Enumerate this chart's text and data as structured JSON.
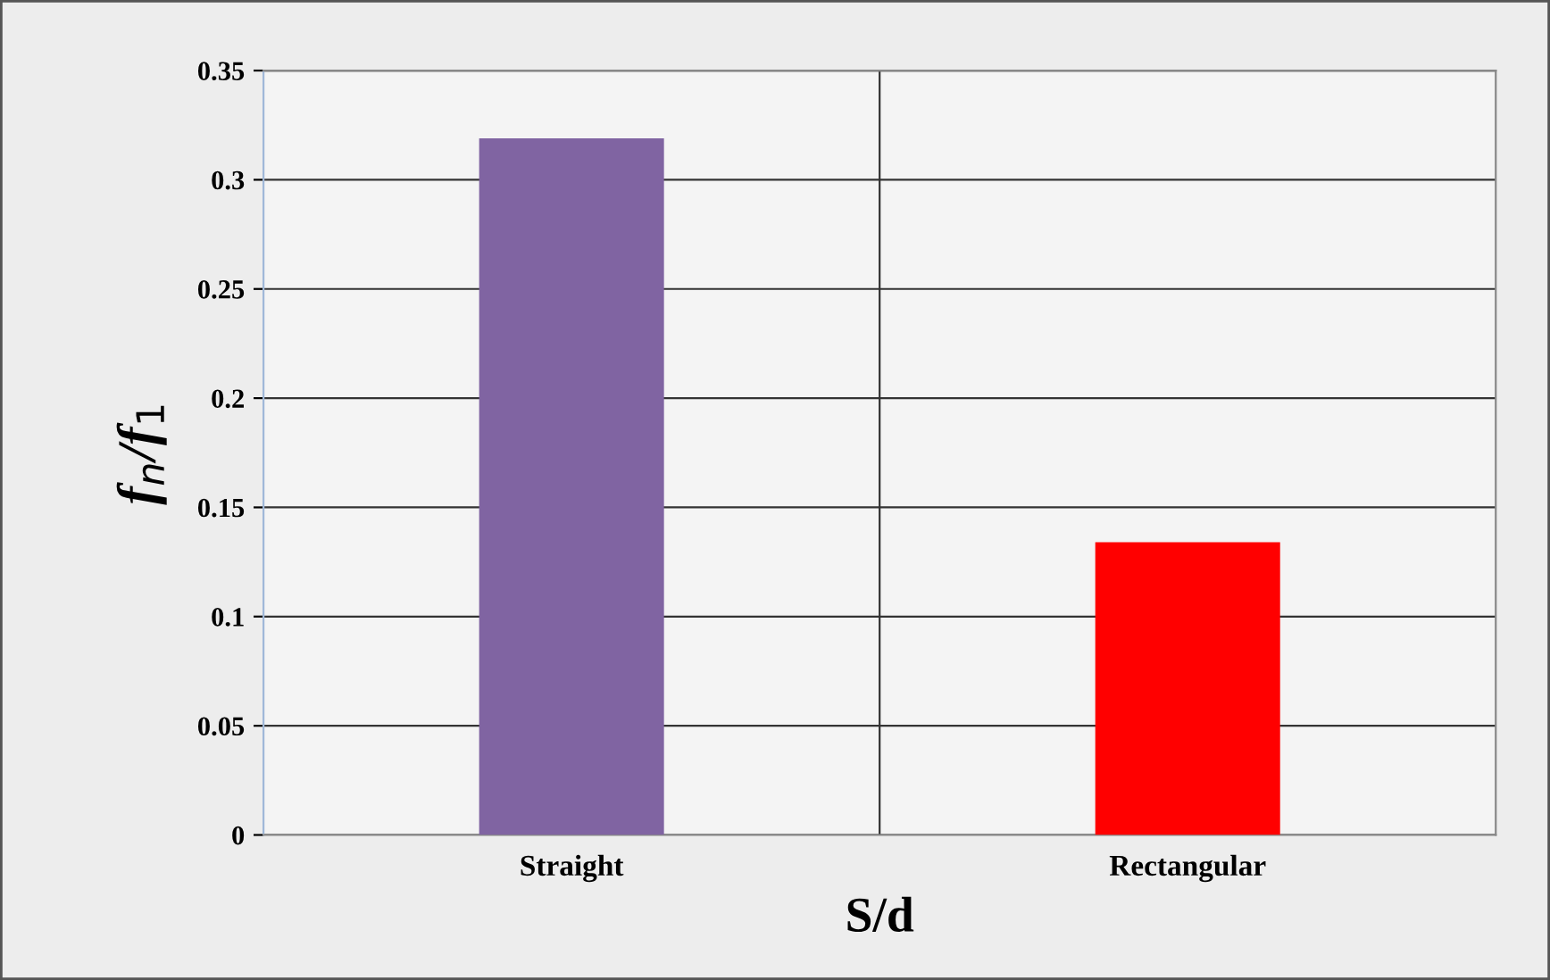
{
  "chart_data": {
    "type": "bar",
    "xlabel": "S/d",
    "ylabel": "f$_{n}$/f$_{1}$",
    "categories": [
      "Straight",
      "Rectangular"
    ],
    "values": [
      0.319,
      0.134
    ],
    "colors": [
      "#8064a2",
      "#ff0000"
    ],
    "ylim": [
      0,
      0.35
    ],
    "yticks": [
      {
        "value": 0,
        "label": "0"
      },
      0.05,
      {
        "value": 0.1,
        "label": "0.1"
      },
      0.15,
      {
        "value": 0.2,
        "label": "0.2"
      },
      0.25,
      {
        "value": 0.3,
        "label": "0.3"
      },
      0.35
    ],
    "grid": true
  }
}
